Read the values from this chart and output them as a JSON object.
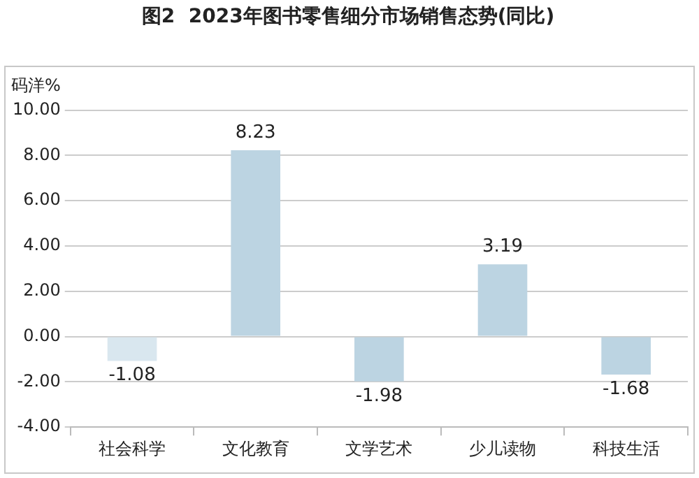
{
  "chart_data": {
    "type": "bar",
    "title": "图2  2023年图书零售细分市场销售态势(同比)",
    "ylabel": "码洋%",
    "categories": [
      "社会科学",
      "文化教育",
      "文学艺术",
      "少儿读物",
      "科技生活"
    ],
    "values": [
      -1.08,
      8.23,
      -1.98,
      3.19,
      -1.68
    ],
    "colors": [
      "#d9e7ef",
      "#bcd4e2",
      "#bcd4e2",
      "#bcd4e2",
      "#bcd4e2"
    ],
    "ylim": [
      -4,
      10
    ],
    "yticks": [
      {
        "value": -4,
        "label": "-4.00"
      },
      {
        "value": -2,
        "label": "-2.00"
      },
      {
        "value": 0,
        "label": "0.00"
      },
      {
        "value": 2,
        "label": "2.00"
      },
      {
        "value": 4,
        "label": "4.00"
      },
      {
        "value": 6,
        "label": "6.00"
      },
      {
        "value": 8,
        "label": "8.00"
      },
      {
        "value": 10,
        "label": "10.00"
      }
    ],
    "grid": "y",
    "data_labels": true
  }
}
